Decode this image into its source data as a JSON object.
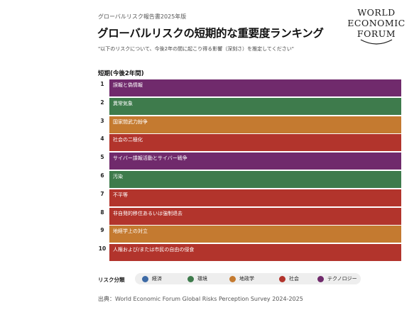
{
  "header": {
    "report_label": "グローバルリスク報告書2025年版",
    "title": "グローバルリスクの短期的な重要度ランキング",
    "subtitle": "\"以下のリスクについて、今後2年の間に起こり得る影響（深刻さ）を推定してください\""
  },
  "logo": {
    "lines": [
      "WORLD",
      "ECONOMIC",
      "FORUM"
    ]
  },
  "colors": {
    "economic": "#3d6aa5",
    "environmental": "#3e7b4c",
    "geopolitical": "#c47a30",
    "societal": "#b2342c",
    "technological": "#702a6c"
  },
  "chart_data": {
    "type": "table",
    "section_label": "短期(今後2年間)",
    "rows": [
      {
        "rank": "1",
        "label": "誤報と偽情報",
        "category": "technological"
      },
      {
        "rank": "2",
        "label": "異常気象",
        "category": "environmental"
      },
      {
        "rank": "3",
        "label": "国家間武力紛争",
        "category": "geopolitical"
      },
      {
        "rank": "4",
        "label": "社会の二極化",
        "category": "societal"
      },
      {
        "rank": "5",
        "label": "サイバー諜報活動とサイバー戦争",
        "category": "technological"
      },
      {
        "rank": "6",
        "label": "汚染",
        "category": "environmental"
      },
      {
        "rank": "7",
        "label": "不平等",
        "category": "societal"
      },
      {
        "rank": "8",
        "label": "非自発的移住あるいは強制退去",
        "category": "societal"
      },
      {
        "rank": "9",
        "label": "地経学上の対立",
        "category": "geopolitical"
      },
      {
        "rank": "10",
        "label": "人権および/または市民の自由の侵食",
        "category": "societal"
      }
    ]
  },
  "legend": {
    "title": "リスク分類",
    "items": [
      {
        "label": "経済",
        "category": "economic"
      },
      {
        "label": "環境",
        "category": "environmental"
      },
      {
        "label": "地政学",
        "category": "geopolitical"
      },
      {
        "label": "社会",
        "category": "societal"
      },
      {
        "label": "テクノロジー",
        "category": "technological"
      }
    ]
  },
  "footer": {
    "source": "出典：World Economic Forum Global Risks Perception Survey 2024-2025"
  }
}
